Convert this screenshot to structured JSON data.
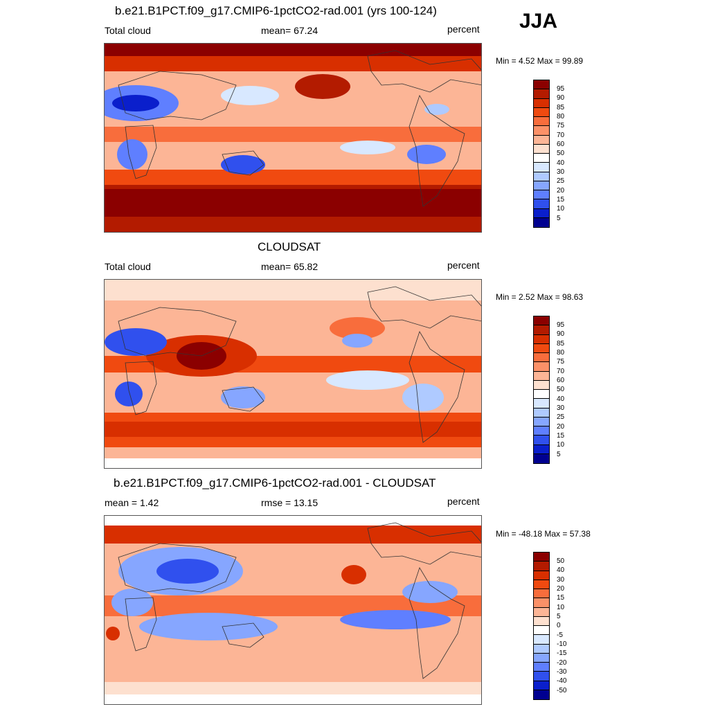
{
  "season_label": "JJA",
  "panels": [
    {
      "title": "b.e21.B1PCT.f09_g17.CMIP6-1pctCO2-rad.001 (yrs 100-124)",
      "left_label": "Total cloud",
      "center_label": "mean=  67.24",
      "units": "percent",
      "minmax": "Min =   4.52 Max =  99.89",
      "colorbar_ticks": [
        "95",
        "90",
        "85",
        "80",
        "75",
        "70",
        "60",
        "50",
        "40",
        "30",
        "25",
        "20",
        "15",
        "10",
        "5"
      ],
      "colorbar_colors": [
        "#8b0000",
        "#b31b00",
        "#d82f00",
        "#f04a10",
        "#f86d3c",
        "#fb9168",
        "#fcb596",
        "#fde0cf",
        "#ffffff",
        "#d8e8ff",
        "#afcaff",
        "#86a6ff",
        "#5f7fff",
        "#3050ee",
        "#0a1fcc",
        "#000090"
      ]
    },
    {
      "title": "CLOUDSAT",
      "left_label": "Total cloud",
      "center_label": "mean=  65.82",
      "units": "percent",
      "minmax": "Min =   2.52 Max =  98.63",
      "colorbar_ticks": [
        "95",
        "90",
        "85",
        "80",
        "75",
        "70",
        "60",
        "50",
        "40",
        "30",
        "25",
        "20",
        "15",
        "10",
        "5"
      ],
      "colorbar_colors": [
        "#8b0000",
        "#b31b00",
        "#d82f00",
        "#f04a10",
        "#f86d3c",
        "#fb9168",
        "#fcb596",
        "#fde0cf",
        "#ffffff",
        "#d8e8ff",
        "#afcaff",
        "#86a6ff",
        "#5f7fff",
        "#3050ee",
        "#0a1fcc",
        "#000090"
      ]
    },
    {
      "title": "b.e21.B1PCT.f09_g17.CMIP6-1pctCO2-rad.001 - CLOUDSAT",
      "left_label": "mean =   1.42",
      "center_label": "rmse =  13.15",
      "units": "percent",
      "minmax": "Min = -48.18 Max =  57.38",
      "colorbar_ticks": [
        "50",
        "40",
        "30",
        "20",
        "15",
        "10",
        "5",
        "0",
        "-5",
        "-10",
        "-15",
        "-20",
        "-30",
        "-40",
        "-50"
      ],
      "colorbar_colors": [
        "#8b0000",
        "#b31b00",
        "#d82f00",
        "#f04a10",
        "#f86d3c",
        "#fb9168",
        "#fcb596",
        "#fde0cf",
        "#ffffff",
        "#d8e8ff",
        "#afcaff",
        "#86a6ff",
        "#5f7fff",
        "#3050ee",
        "#0a1fcc",
        "#000090"
      ]
    }
  ]
}
